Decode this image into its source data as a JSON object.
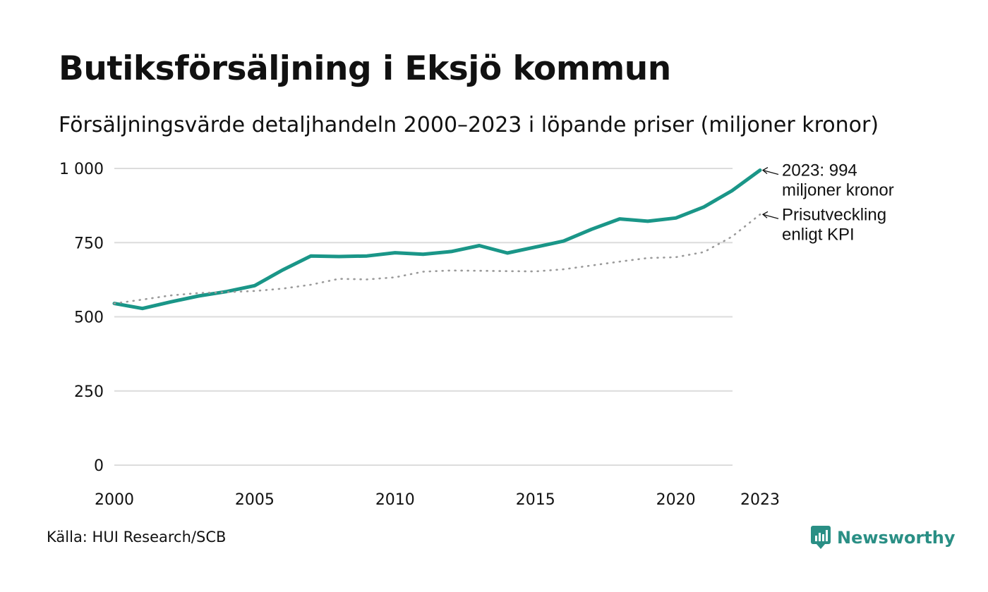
{
  "header": {
    "title": "Butiksförsäljning i Eksjö kommun",
    "subtitle": "Försäljningsvärde detaljhandeln 2000–2023 i löpande priser (miljoner kronor)"
  },
  "footer": {
    "source": "Källa: HUI Research/SCB",
    "brand": "Newsworthy"
  },
  "colors": {
    "sales_line": "#1a9688",
    "kpi_line": "#9a9a9a",
    "grid": "#dcdcdc",
    "brand": "#2a8f85"
  },
  "chart_data": {
    "type": "line",
    "title": "Butiksförsäljning i Eksjö kommun",
    "xlabel": "",
    "ylabel": "miljoner kronor",
    "x": [
      2000,
      2001,
      2002,
      2003,
      2004,
      2005,
      2006,
      2007,
      2008,
      2009,
      2010,
      2011,
      2012,
      2013,
      2014,
      2015,
      2016,
      2017,
      2018,
      2019,
      2020,
      2021,
      2022,
      2023
    ],
    "xlim": [
      2000,
      2023
    ],
    "ylim": [
      0,
      1000
    ],
    "x_ticks": [
      2000,
      2005,
      2010,
      2015,
      2020,
      2023
    ],
    "x_tick_labels": [
      "2000",
      "2005",
      "2010",
      "2015",
      "2020",
      "2023"
    ],
    "y_ticks": [
      0,
      250,
      500,
      750,
      1000
    ],
    "y_tick_labels": [
      "0",
      "250",
      "500",
      "750",
      "1 000"
    ],
    "grid": true,
    "series": [
      {
        "name": "Försäljningsvärde",
        "style": "solid",
        "values": [
          545,
          528,
          550,
          570,
          585,
          605,
          658,
          705,
          703,
          705,
          716,
          711,
          720,
          740,
          715,
          735,
          755,
          795,
          830,
          822,
          833,
          870,
          925,
          994
        ],
        "annotation": [
          "2023: 994",
          "miljoner kronor"
        ]
      },
      {
        "name": "Prisutveckling enligt KPI",
        "style": "dotted",
        "values": [
          545,
          558,
          572,
          580,
          583,
          587,
          595,
          608,
          628,
          626,
          633,
          652,
          656,
          655,
          654,
          653,
          660,
          673,
          686,
          698,
          701,
          718,
          770,
          845
        ],
        "annotation": [
          "Prisutveckling",
          "enligt KPI"
        ]
      }
    ]
  }
}
